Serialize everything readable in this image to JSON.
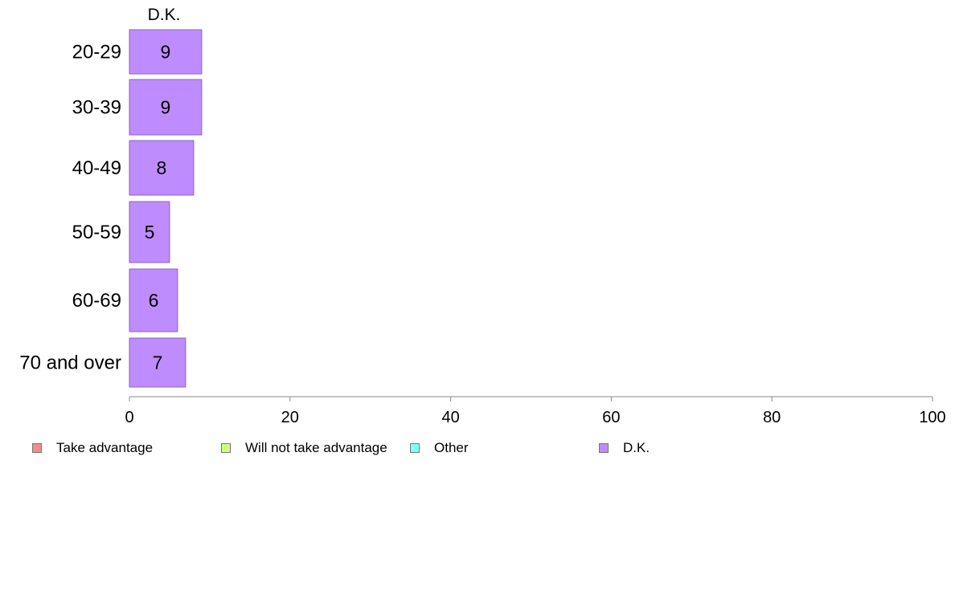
{
  "chart_data": {
    "type": "bar",
    "orientation": "horizontal",
    "panel_title": "D.K.",
    "categories": [
      "20-29",
      "30-39",
      "40-49",
      "50-59",
      "60-69",
      "70 and over"
    ],
    "series": [
      {
        "name": "D.K.",
        "values": [
          9,
          9,
          8,
          5,
          6,
          7
        ],
        "color": "#bf8cff"
      }
    ],
    "data_labels": [
      "9",
      "9",
      "8",
      "5",
      "6",
      "7"
    ],
    "xlim": [
      0,
      100
    ],
    "xticks": [
      "0",
      "20",
      "40",
      "60",
      "80",
      "100"
    ],
    "grid": false,
    "legend_position": "bottom",
    "legend": [
      {
        "label": "Take advantage",
        "color": "#f28b8b"
      },
      {
        "label": "Will not take advantage",
        "color": "#ccff80"
      },
      {
        "label": "Other",
        "color": "#80ffff"
      },
      {
        "label": "D.K.",
        "color": "#bf8cff"
      }
    ]
  }
}
